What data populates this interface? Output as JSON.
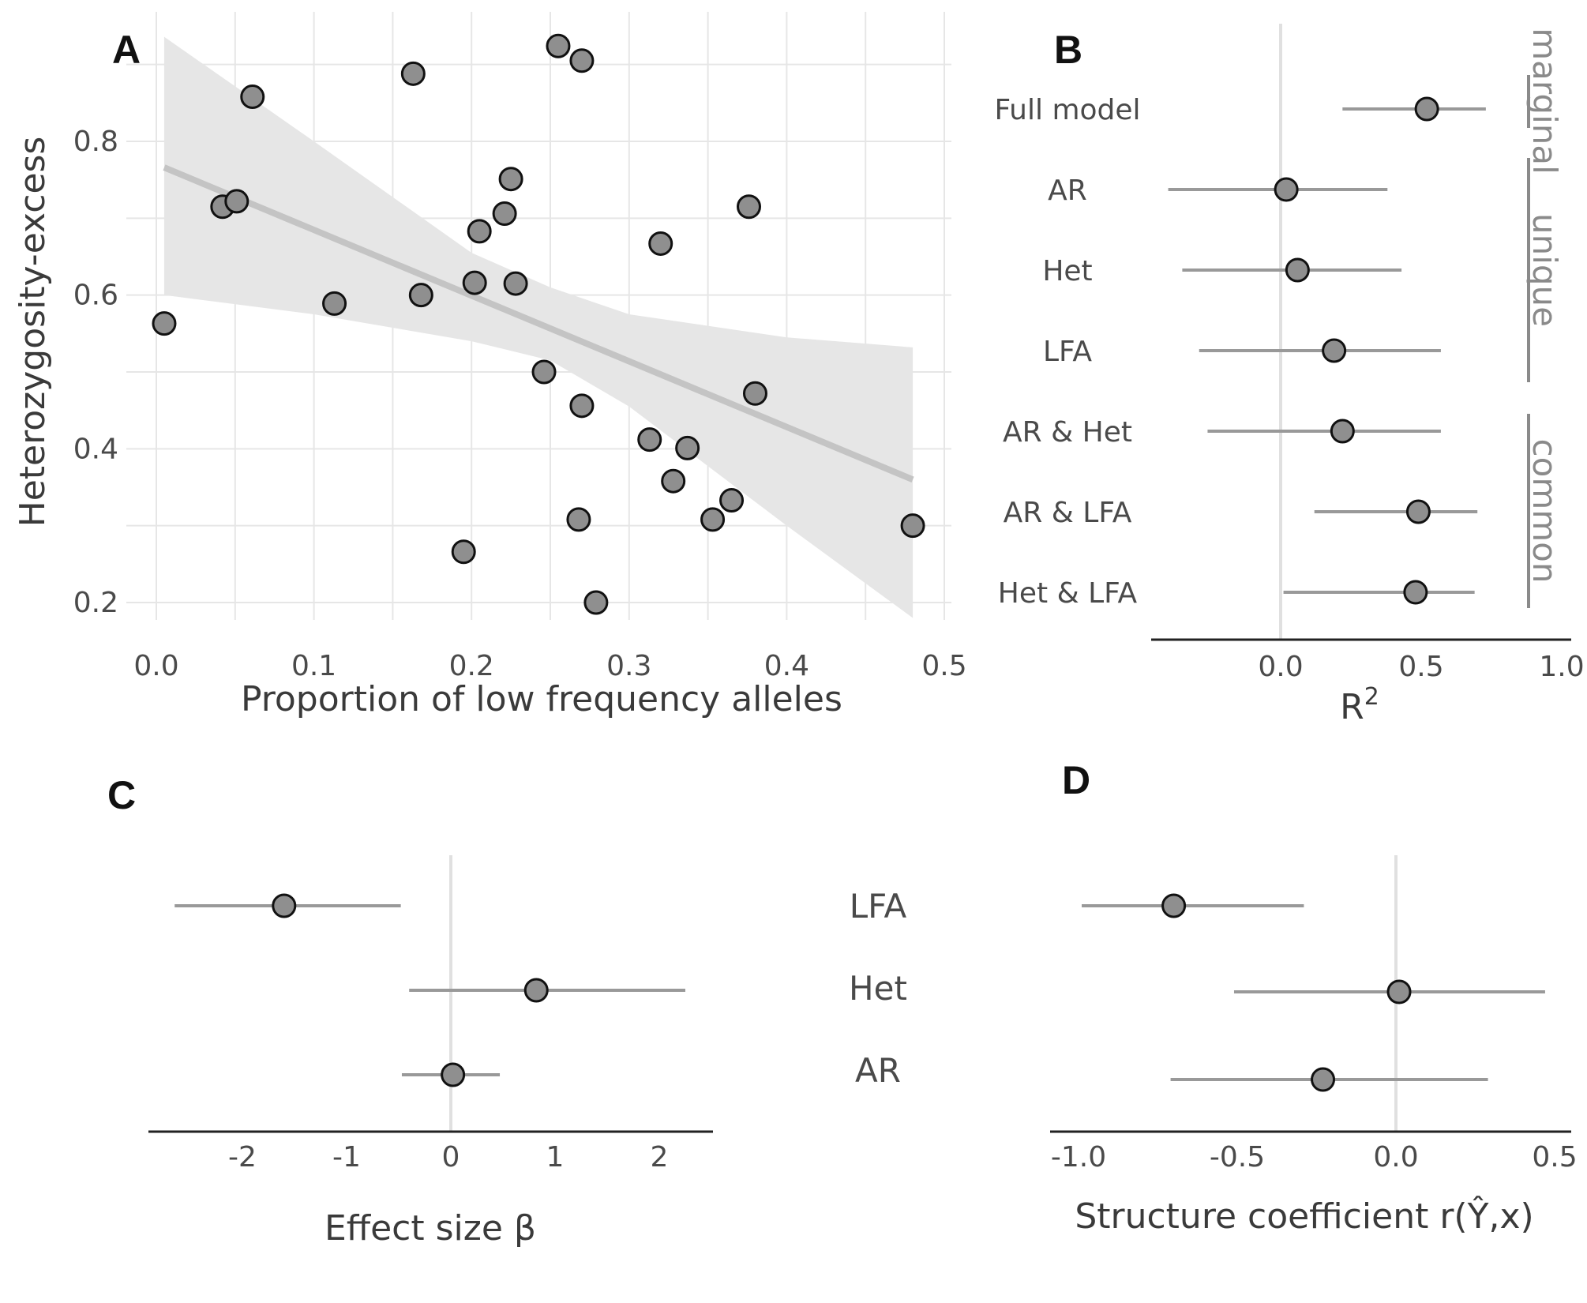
{
  "colors": {
    "point_fill": "#8f8f8f",
    "point_stroke": "#111111",
    "interval": "#999999",
    "band": "#e6e6e6",
    "trend": "#c4c4c4"
  },
  "chart_data": [
    {
      "panel": "A",
      "type": "scatter",
      "xlabel": "Proportion of low frequency alleles",
      "ylabel": "Heterozygosity-excess",
      "xlim": [
        0,
        0.5
      ],
      "ylim": [
        0.15,
        0.95
      ],
      "xticks": [
        "0.0",
        "0.1",
        "0.2",
        "0.3",
        "0.4",
        "0.5"
      ],
      "yticks": [
        "0.2",
        "0.4",
        "0.6",
        "0.8"
      ],
      "grid": true,
      "points": [
        {
          "x": 0.005,
          "y": 0.563
        },
        {
          "x": 0.042,
          "y": 0.715
        },
        {
          "x": 0.051,
          "y": 0.722
        },
        {
          "x": 0.061,
          "y": 0.858
        },
        {
          "x": 0.113,
          "y": 0.589
        },
        {
          "x": 0.163,
          "y": 0.888
        },
        {
          "x": 0.168,
          "y": 0.6
        },
        {
          "x": 0.195,
          "y": 0.266
        },
        {
          "x": 0.202,
          "y": 0.616
        },
        {
          "x": 0.205,
          "y": 0.683
        },
        {
          "x": 0.221,
          "y": 0.706
        },
        {
          "x": 0.225,
          "y": 0.751
        },
        {
          "x": 0.228,
          "y": 0.615
        },
        {
          "x": 0.246,
          "y": 0.5
        },
        {
          "x": 0.255,
          "y": 0.924
        },
        {
          "x": 0.268,
          "y": 0.308
        },
        {
          "x": 0.27,
          "y": 0.905
        },
        {
          "x": 0.27,
          "y": 0.456
        },
        {
          "x": 0.279,
          "y": 0.2
        },
        {
          "x": 0.313,
          "y": 0.412
        },
        {
          "x": 0.32,
          "y": 0.667
        },
        {
          "x": 0.328,
          "y": 0.358
        },
        {
          "x": 0.337,
          "y": 0.401
        },
        {
          "x": 0.353,
          "y": 0.308
        },
        {
          "x": 0.365,
          "y": 0.333
        },
        {
          "x": 0.376,
          "y": 0.715
        },
        {
          "x": 0.38,
          "y": 0.472
        },
        {
          "x": 0.48,
          "y": 0.3
        }
      ],
      "trend": {
        "x": [
          0.005,
          0.48
        ],
        "y": [
          0.766,
          0.36
        ]
      },
      "band": {
        "x": [
          0.005,
          0.1,
          0.2,
          0.25,
          0.3,
          0.4,
          0.48
        ],
        "upper": [
          0.936,
          0.8,
          0.655,
          0.61,
          0.575,
          0.545,
          0.532
        ],
        "lower": [
          0.6,
          0.575,
          0.54,
          0.515,
          0.455,
          0.3,
          0.18
        ]
      }
    },
    {
      "panel": "B",
      "type": "forest",
      "xlabel": "R",
      "xlabel_superscript": "2",
      "xlim": [
        -0.5,
        1.0
      ],
      "xticks": [
        "0.0",
        "0.5",
        "1.0"
      ],
      "rows": [
        {
          "label": "Full model",
          "value": 0.52,
          "lo": 0.22,
          "hi": 0.73
        },
        {
          "label": "AR",
          "value": 0.02,
          "lo": -0.4,
          "hi": 0.38
        },
        {
          "label": "Het",
          "value": 0.06,
          "lo": -0.35,
          "hi": 0.43
        },
        {
          "label": "LFA",
          "value": 0.19,
          "lo": -0.29,
          "hi": 0.57
        },
        {
          "label": "AR & Het",
          "value": 0.22,
          "lo": -0.26,
          "hi": 0.57
        },
        {
          "label": "AR & LFA",
          "value": 0.49,
          "lo": 0.12,
          "hi": 0.7
        },
        {
          "label": "Het & LFA",
          "value": 0.48,
          "lo": 0.01,
          "hi": 0.69
        }
      ],
      "groups": [
        {
          "label": "marginal",
          "rows": [
            0,
            0
          ]
        },
        {
          "label": "unique",
          "rows": [
            1,
            3
          ]
        },
        {
          "label": "common",
          "rows": [
            4,
            6
          ]
        }
      ]
    },
    {
      "panel": "C",
      "type": "forest",
      "xlabel": "Effect size β",
      "xlim": [
        -2.9,
        2.5
      ],
      "xticks": [
        "-2",
        "-1",
        "0",
        "1",
        "2"
      ],
      "rows": [
        {
          "label": "LFA",
          "value": -1.6,
          "lo": -2.65,
          "hi": -0.48
        },
        {
          "label": "Het",
          "value": 0.82,
          "lo": -0.4,
          "hi": 2.25
        },
        {
          "label": "AR",
          "value": 0.02,
          "lo": -0.47,
          "hi": 0.47
        }
      ]
    },
    {
      "panel": "D",
      "type": "forest",
      "xlabel": "Structure coefficient r(Ŷ,x)",
      "xlim": [
        -1.05,
        0.55
      ],
      "xticks": [
        "-1.0",
        "-0.5",
        "0.0",
        "0.5"
      ],
      "rows": [
        {
          "label": "LFA",
          "value": -0.7,
          "lo": -0.99,
          "hi": -0.29
        },
        {
          "label": "Het",
          "value": 0.01,
          "lo": -0.51,
          "hi": 0.47
        },
        {
          "label": "AR",
          "value": -0.23,
          "lo": -0.71,
          "hi": 0.29
        }
      ]
    }
  ]
}
